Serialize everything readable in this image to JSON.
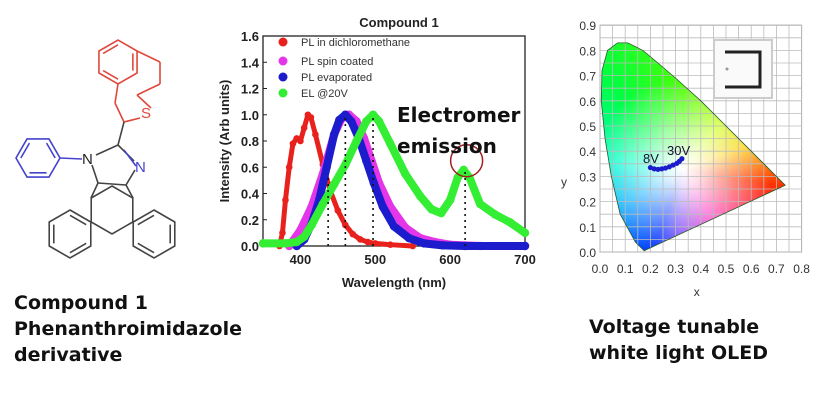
{
  "molecule": {
    "atoms": {
      "sulfur": "S",
      "nitrogen1": "N",
      "nitrogen2": "N"
    },
    "caption_lines": [
      "Compound 1",
      "Phenanthroimidazole",
      "derivative"
    ]
  },
  "oled": {
    "caption_lines": [
      "Voltage tunable",
      "white light OLED"
    ]
  },
  "chart_data": [
    {
      "type": "scatter",
      "title": "Compound 1",
      "xlabel": "Wavelength (nm)",
      "ylabel": "Intensity (Arb units)",
      "xlim": [
        350,
        700
      ],
      "ylim": [
        0,
        1.6
      ],
      "xticks": [
        "400",
        "500",
        "600",
        "700"
      ],
      "xtick_values": [
        400,
        500,
        600,
        700
      ],
      "yticks": [
        "0.0",
        "0.2",
        "0.4",
        "0.6",
        "0.8",
        "1.0",
        "1.2",
        "1.4",
        "1.6"
      ],
      "ytick_values": [
        0,
        0.2,
        0.4,
        0.6,
        0.8,
        1.0,
        1.2,
        1.4,
        1.6
      ],
      "legend_position": "top-left",
      "annotation": [
        "Electromer",
        "emission"
      ],
      "peak_markers": [
        437,
        460,
        497,
        620
      ],
      "series": [
        {
          "name": "PL in dichloromethane",
          "color": "#e8211c",
          "x": [
            372,
            376,
            380,
            385,
            390,
            395,
            400,
            405,
            410,
            414,
            420,
            430,
            440,
            450,
            460,
            470,
            480,
            490,
            500,
            520,
            550
          ],
          "y": [
            0,
            0.1,
            0.35,
            0.6,
            0.78,
            0.82,
            0.8,
            0.9,
            1.0,
            0.98,
            0.85,
            0.62,
            0.42,
            0.27,
            0.16,
            0.09,
            0.05,
            0.03,
            0.02,
            0.01,
            0
          ]
        },
        {
          "name": "PL spin coated",
          "color": "#e535e8",
          "x": [
            385,
            400,
            415,
            430,
            445,
            455,
            465,
            475,
            485,
            495,
            505,
            520,
            540,
            560,
            580,
            600,
            640,
            700
          ],
          "y": [
            0,
            0.12,
            0.3,
            0.55,
            0.85,
            0.97,
            1.0,
            0.95,
            0.82,
            0.65,
            0.48,
            0.3,
            0.14,
            0.06,
            0.03,
            0.01,
            0,
            0
          ]
        },
        {
          "name": "PL evaporated",
          "color": "#1c1ccc",
          "x": [
            395,
            405,
            415,
            425,
            435,
            445,
            452,
            460,
            468,
            478,
            488,
            498,
            510,
            525,
            545,
            565,
            590,
            620,
            700
          ],
          "y": [
            0,
            0.05,
            0.17,
            0.35,
            0.6,
            0.85,
            0.96,
            1.0,
            0.95,
            0.82,
            0.65,
            0.48,
            0.3,
            0.15,
            0.06,
            0.02,
            0.005,
            0,
            0
          ]
        },
        {
          "name": "EL @20V",
          "color": "#33ee33",
          "x": [
            350,
            380,
            395,
            405,
            415,
            430,
            445,
            460,
            475,
            488,
            497,
            505,
            520,
            540,
            560,
            575,
            588,
            600,
            610,
            618,
            626,
            640,
            660,
            680,
            700
          ],
          "y": [
            0.02,
            0.02,
            0.03,
            0.07,
            0.16,
            0.32,
            0.47,
            0.62,
            0.8,
            0.95,
            1.0,
            0.95,
            0.78,
            0.55,
            0.38,
            0.28,
            0.25,
            0.35,
            0.52,
            0.58,
            0.52,
            0.32,
            0.24,
            0.18,
            0.1
          ]
        }
      ]
    },
    {
      "type": "scatter",
      "title": "",
      "xlabel": "x",
      "ylabel": "y",
      "xlim": [
        0,
        0.8
      ],
      "ylim": [
        0,
        0.9
      ],
      "xticks": [
        "0.0",
        "0.1",
        "0.2",
        "0.3",
        "0.4",
        "0.5",
        "0.6",
        "0.7",
        "0.8"
      ],
      "yticks": [
        "0.0",
        "0.1",
        "0.2",
        "0.3",
        "0.4",
        "0.5",
        "0.6",
        "0.7",
        "0.8",
        "0.9"
      ],
      "grid": true,
      "point_labels": {
        "start": "8V",
        "end": "30V"
      },
      "points_color": "#1c1ccc",
      "x": [
        0.2,
        0.215,
        0.23,
        0.245,
        0.26,
        0.275,
        0.29,
        0.305,
        0.315,
        0.325
      ],
      "y": [
        0.335,
        0.33,
        0.328,
        0.33,
        0.333,
        0.338,
        0.345,
        0.352,
        0.36,
        0.37
      ]
    }
  ]
}
